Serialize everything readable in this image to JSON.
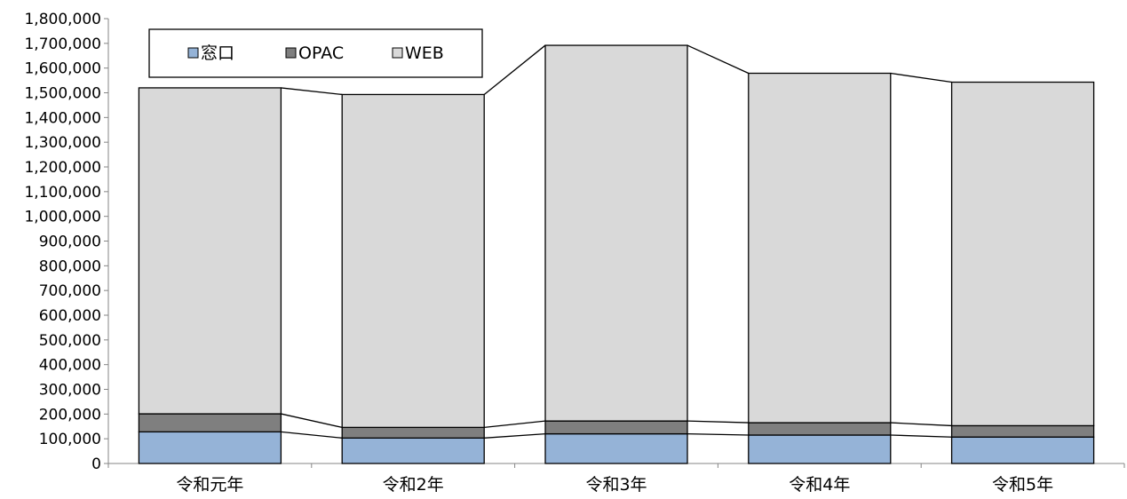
{
  "chart_data": {
    "type": "bar",
    "stacked": true,
    "categories": [
      "令和元年",
      "令和2年",
      "令和3年",
      "令和4年",
      "令和5年"
    ],
    "series": [
      {
        "name": "窓口",
        "color": "#95b3d7",
        "values": [
          128000,
          103000,
          120000,
          115000,
          107000
        ]
      },
      {
        "name": "OPAC",
        "color": "#7f7f7f",
        "values": [
          73000,
          43000,
          52000,
          50000,
          46000
        ]
      },
      {
        "name": "WEB",
        "color": "#d9d9d9",
        "values": [
          1319000,
          1347000,
          1520000,
          1414000,
          1390000
        ]
      }
    ],
    "series_lines": true,
    "ylim": [
      0,
      1800000
    ],
    "ytick_step": 100000,
    "yticks": [
      "0",
      "100,000",
      "200,000",
      "300,000",
      "400,000",
      "500,000",
      "600,000",
      "700,000",
      "800,000",
      "900,000",
      "1,000,000",
      "1,100,000",
      "1,200,000",
      "1,300,000",
      "1,400,000",
      "1,500,000",
      "1,600,000",
      "1,700,000",
      "1,800,000"
    ],
    "grid": false,
    "legend_position": "top-left",
    "legend": [
      {
        "label": "窓口",
        "color": "#95b3d7"
      },
      {
        "label": "OPAC",
        "color": "#7f7f7f"
      },
      {
        "label": "WEB",
        "color": "#d9d9d9"
      }
    ]
  }
}
